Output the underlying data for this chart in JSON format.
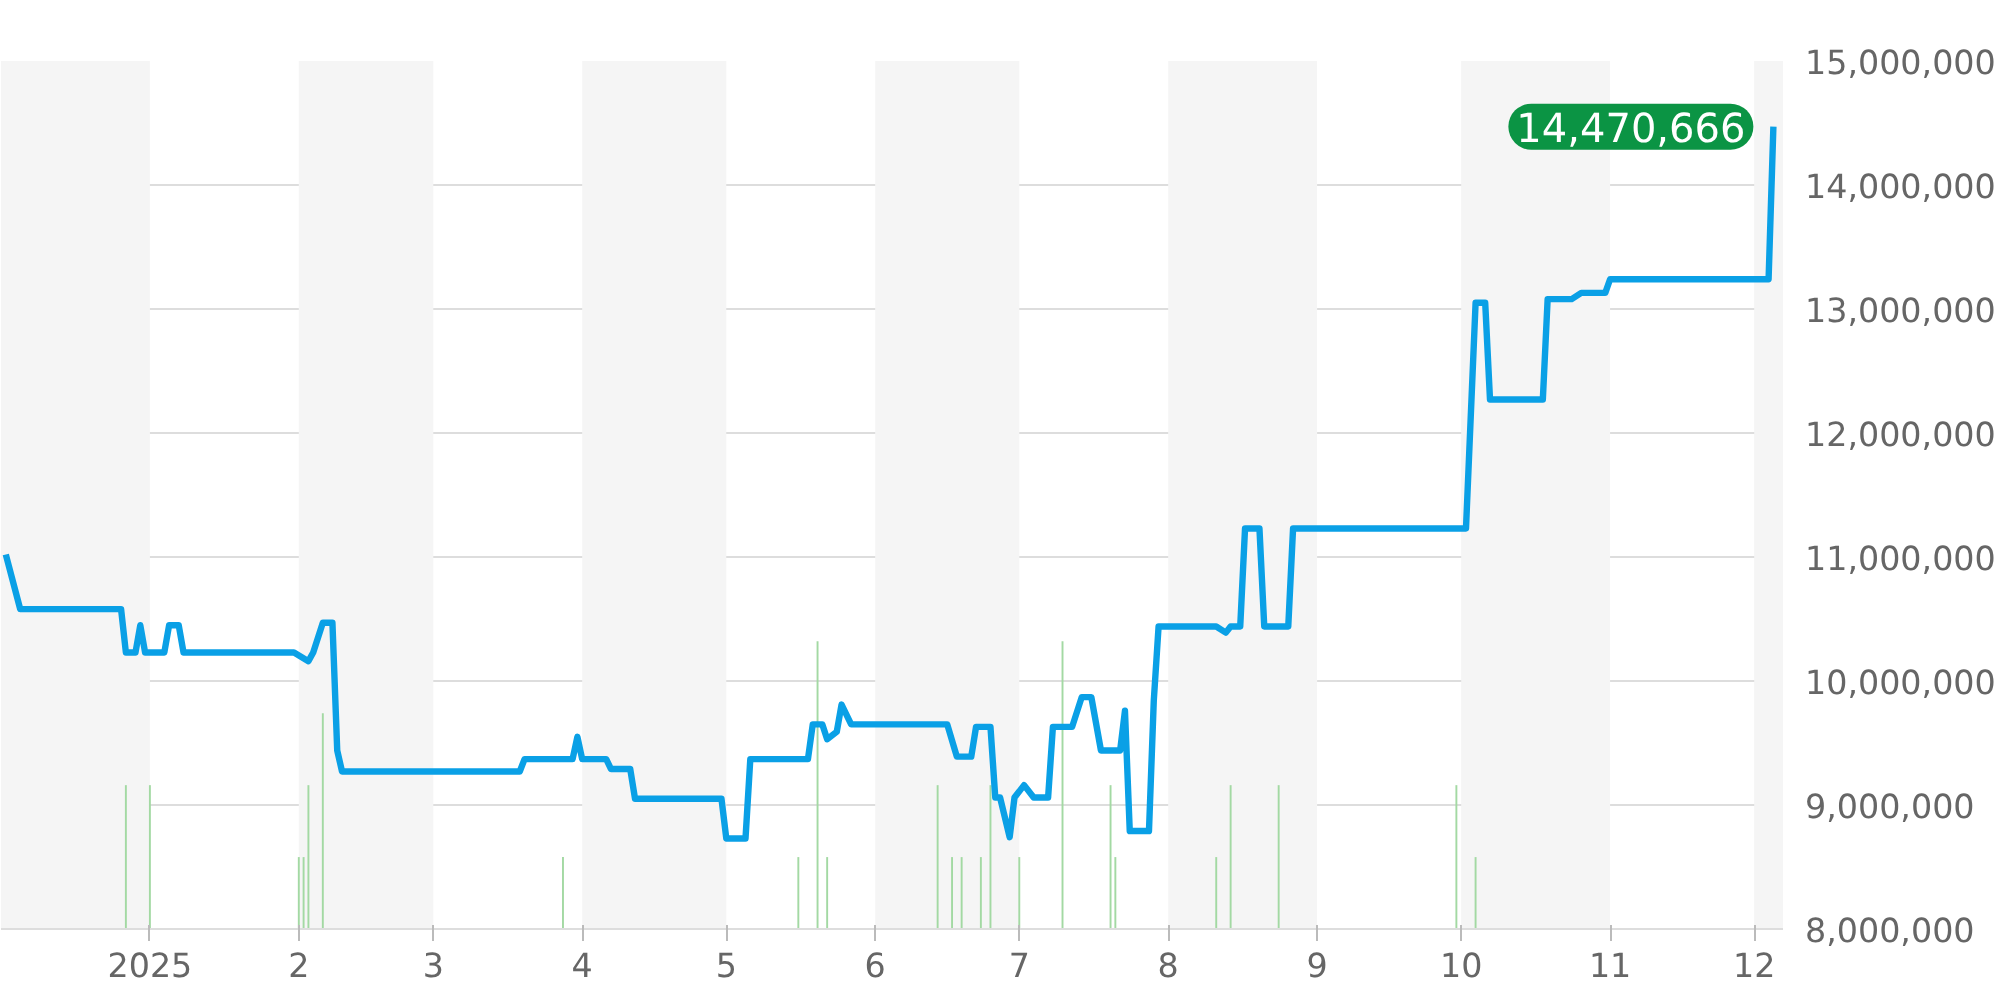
{
  "chart_data": {
    "type": "line",
    "xlim": [
      "2024-12-01",
      "2025-12-07"
    ],
    "xticks": [
      {
        "value": "2025-01",
        "label": "2025"
      },
      {
        "value": "2025-02",
        "label": "2"
      },
      {
        "value": "2025-03",
        "label": "3"
      },
      {
        "value": "2025-04",
        "label": "4"
      },
      {
        "value": "2025-05",
        "label": "5"
      },
      {
        "value": "2025-06",
        "label": "6"
      },
      {
        "value": "2025-07",
        "label": "7"
      },
      {
        "value": "2025-08",
        "label": "8"
      },
      {
        "value": "2025-09",
        "label": "9"
      },
      {
        "value": "2025-10",
        "label": "10"
      },
      {
        "value": "2025-11",
        "label": "11"
      },
      {
        "value": "2025-12",
        "label": "12"
      }
    ],
    "ylim": [
      8000000,
      15000000
    ],
    "yticks": [
      {
        "value": 8000000,
        "label": "8,000,000"
      },
      {
        "value": 9000000,
        "label": "9,000,000"
      },
      {
        "value": 10000000,
        "label": "10,000,000"
      },
      {
        "value": 11000000,
        "label": "11,000,000"
      },
      {
        "value": 12000000,
        "label": "12,000,000"
      },
      {
        "value": 13000000,
        "label": "13,000,000"
      },
      {
        "value": 14000000,
        "label": "14,000,000"
      },
      {
        "value": 15000000,
        "label": "15,000,000"
      }
    ],
    "grid": "y",
    "bands": [
      {
        "axis": "x",
        "from": "2024-12-01",
        "to": "2025-01-01",
        "color": "#f5f5f5"
      },
      {
        "axis": "x",
        "from": "2025-02-01",
        "to": "2025-03-01",
        "color": "#f5f5f5"
      },
      {
        "axis": "x",
        "from": "2025-04-01",
        "to": "2025-05-01",
        "color": "#f5f5f5"
      },
      {
        "axis": "x",
        "from": "2025-06-01",
        "to": "2025-07-01",
        "color": "#f5f5f5"
      },
      {
        "axis": "x",
        "from": "2025-08-01",
        "to": "2025-09-01",
        "color": "#f5f5f5"
      },
      {
        "axis": "x",
        "from": "2025-10-01",
        "to": "2025-11-01",
        "color": "#f5f5f5"
      },
      {
        "axis": "x",
        "from": "2025-12-01",
        "to": "2025-12-07",
        "color": "#f5f5f5"
      }
    ],
    "series": [
      {
        "type": "bar",
        "color": "#a3d9a3",
        "x": [
          "2024-12-27",
          "2025-01-01",
          "2025-02-01",
          "2025-02-02",
          "2025-02-03",
          "2025-02-06",
          "2025-03-28",
          "2025-05-16",
          "2025-05-20",
          "2025-05-22",
          "2025-06-14",
          "2025-06-17",
          "2025-06-19",
          "2025-06-23",
          "2025-06-25",
          "2025-07-01",
          "2025-07-10",
          "2025-07-20",
          "2025-07-21",
          "2025-08-11",
          "2025-08-14",
          "2025-08-24",
          "2025-09-30",
          "2025-10-04"
        ],
        "values": [
          9160000,
          9160000,
          8580000,
          8580000,
          9160000,
          9740000,
          8580000,
          8580000,
          10320000,
          8580000,
          9160000,
          8580000,
          8580000,
          8580000,
          9160000,
          8580000,
          10320000,
          9160000,
          8580000,
          8580000,
          9160000,
          9160000,
          9160000,
          8580000
        ]
      },
      {
        "color": "#0aa0e6",
        "x": [
          "2024-12-02",
          "2024-12-05",
          "2024-12-26",
          "2024-12-27",
          "2024-12-29",
          "2024-12-30",
          "2024-12-31",
          "2025-01-04",
          "2025-01-05",
          "2025-01-07",
          "2025-01-08",
          "2025-01-31",
          "2025-02-03",
          "2025-02-04",
          "2025-02-06",
          "2025-02-08",
          "2025-02-09",
          "2025-02-10",
          "2025-03-19",
          "2025-03-20",
          "2025-03-30",
          "2025-03-31",
          "2025-04-01",
          "2025-04-06",
          "2025-04-07",
          "2025-04-11",
          "2025-04-12",
          "2025-04-30",
          "2025-05-01",
          "2025-05-05",
          "2025-05-06",
          "2025-05-18",
          "2025-05-19",
          "2025-05-21",
          "2025-05-22",
          "2025-05-24",
          "2025-05-25",
          "2025-05-27",
          "2025-06-16",
          "2025-06-18",
          "2025-06-21",
          "2025-06-22",
          "2025-06-25",
          "2025-06-26",
          "2025-06-27",
          "2025-06-29",
          "2025-06-30",
          "2025-07-02",
          "2025-07-04",
          "2025-07-07",
          "2025-07-08",
          "2025-07-12",
          "2025-07-14",
          "2025-07-16",
          "2025-07-18",
          "2025-07-22",
          "2025-07-23",
          "2025-07-24",
          "2025-07-28",
          "2025-07-29",
          "2025-07-30",
          "2025-08-11",
          "2025-08-13",
          "2025-08-14",
          "2025-08-16",
          "2025-08-17",
          "2025-08-20",
          "2025-08-21",
          "2025-08-26",
          "2025-08-27",
          "2025-10-02",
          "2025-10-04",
          "2025-10-06",
          "2025-10-07",
          "2025-10-18",
          "2025-10-19",
          "2025-10-24",
          "2025-10-26",
          "2025-10-31",
          "2025-11-01",
          "2025-12-04",
          "2025-12-05"
        ],
        "values": [
          11020000,
          10580000,
          10580000,
          10230000,
          10230000,
          10450000,
          10230000,
          10230000,
          10450000,
          10450000,
          10230000,
          10230000,
          10160000,
          10230000,
          10470000,
          10470000,
          9440000,
          9270000,
          9270000,
          9370000,
          9370000,
          9550000,
          9370000,
          9370000,
          9290000,
          9290000,
          9050000,
          9050000,
          8730000,
          8730000,
          9370000,
          9370000,
          9650000,
          9650000,
          9530000,
          9590000,
          9810000,
          9650000,
          9650000,
          9390000,
          9390000,
          9630000,
          9630000,
          9060000,
          9060000,
          8740000,
          9060000,
          9160000,
          9060000,
          9060000,
          9630000,
          9630000,
          9870000,
          9870000,
          9440000,
          9440000,
          9760000,
          8790000,
          8790000,
          9840000,
          10440000,
          10440000,
          10390000,
          10440000,
          10440000,
          11230000,
          11230000,
          10440000,
          10440000,
          11230000,
          11230000,
          13050000,
          13050000,
          12270000,
          12270000,
          13080000,
          13080000,
          13130000,
          13130000,
          13240000,
          13240000,
          14470666
        ]
      }
    ],
    "annotations": [
      {
        "text": "14,470,666",
        "x": "2025-12-05",
        "y": 14470666
      }
    ]
  }
}
